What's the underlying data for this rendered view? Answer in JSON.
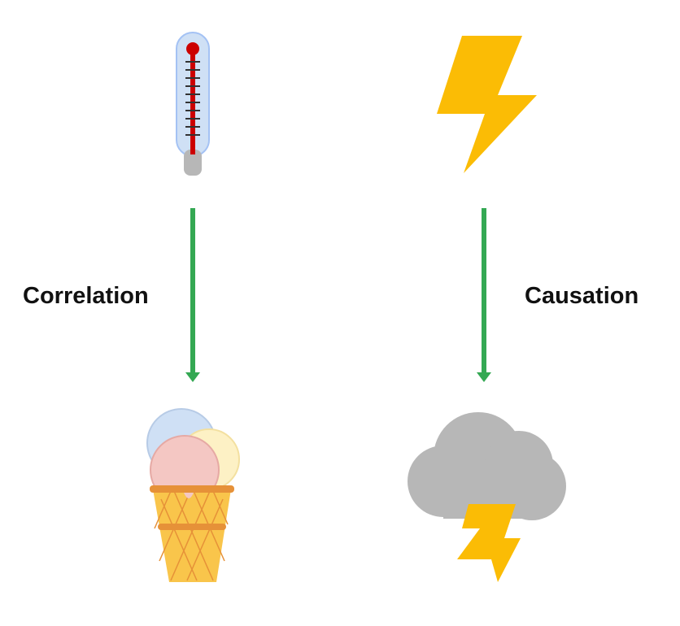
{
  "labels": {
    "left": "Correlation",
    "right": "Causation"
  },
  "icons": {
    "top_left": "thermometer-icon",
    "top_right": "lightning-bolt-icon",
    "bottom_left": "ice-cream-cone-icon",
    "bottom_right": "storm-cloud-icon"
  },
  "colors": {
    "arrow": "#34a853",
    "bolt": "#fbbc05",
    "cloud": "#b7b7b7",
    "thermometer_glass": "#cfe0f5",
    "thermometer_mercury": "#cc0000",
    "cone": "#f9c54b"
  }
}
